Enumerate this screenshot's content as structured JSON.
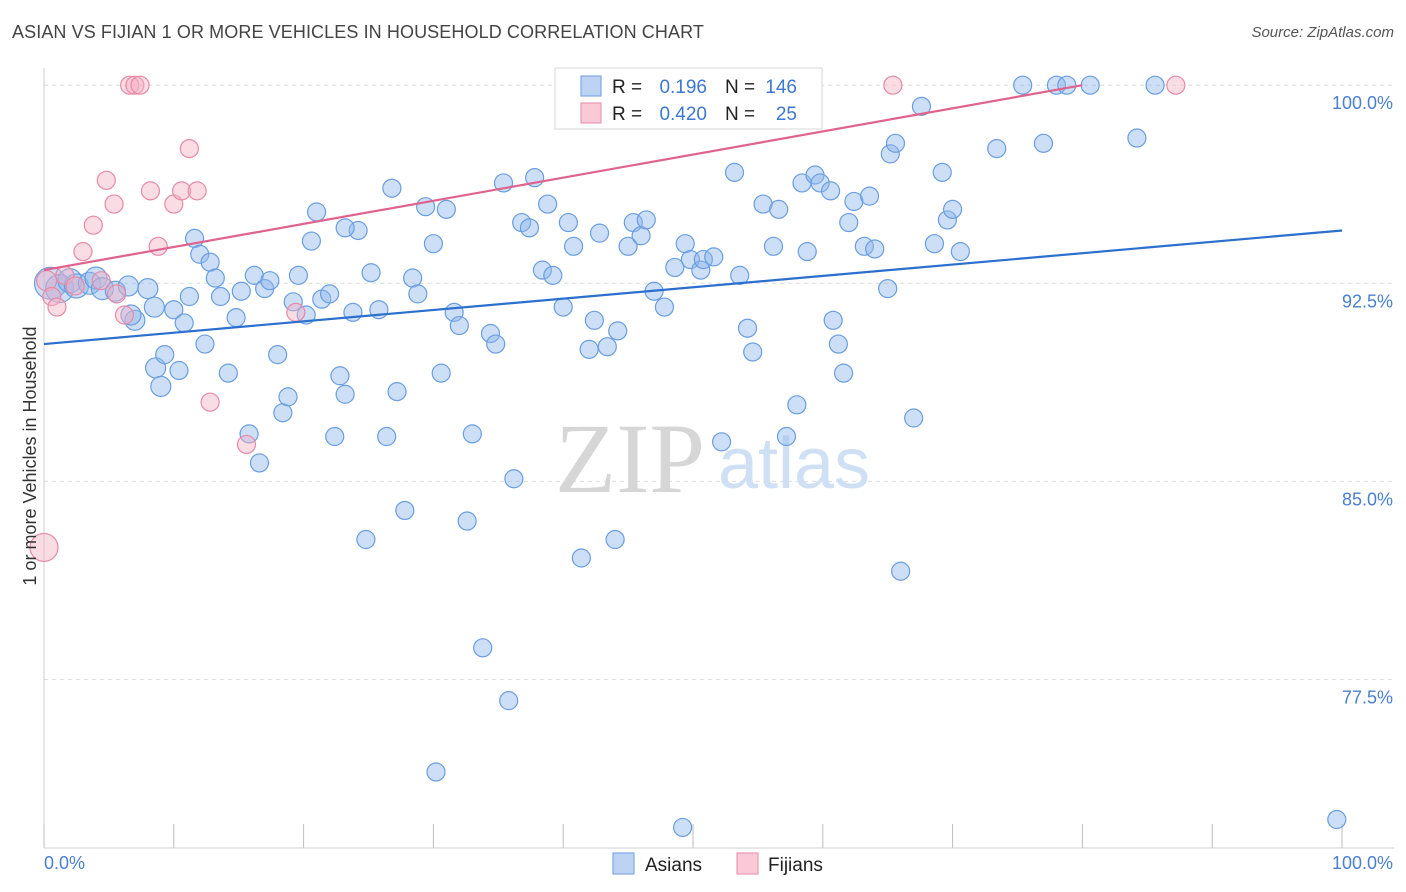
{
  "chart_data": {
    "type": "scatter",
    "title": "ASIAN VS FIJIAN 1 OR MORE VEHICLES IN HOUSEHOLD CORRELATION CHART",
    "source": "Source: ZipAtlas.com",
    "xlabel": "",
    "ylabel": "1 or more Vehicles in Household",
    "xlim": [
      0,
      100
    ],
    "ylim": [
      71.5,
      100.5
    ],
    "x_tick_labels": [
      "0.0%",
      "100.0%"
    ],
    "y_ticks": [
      {
        "value": 100.0,
        "label": "100.0%"
      },
      {
        "value": 92.5,
        "label": "92.5%"
      },
      {
        "value": 85.0,
        "label": "85.0%"
      },
      {
        "value": 77.5,
        "label": "77.5%"
      }
    ],
    "grid": "horizontal dashed",
    "legend_position": "top-center",
    "legend": [
      {
        "r_label": "R =",
        "r_value": "0.196",
        "n_label": "N =",
        "n_value": "146"
      },
      {
        "r_label": "R =",
        "r_value": "0.420",
        "n_label": "N =",
        "n_value": "25"
      }
    ],
    "watermark": {
      "zip": "ZIP",
      "atlas": "atlas"
    },
    "series": [
      {
        "name": "Asians",
        "color": "#8fb8ea",
        "stroke": "#6a9ee0",
        "trend_color": "#2b6fcf",
        "trend": [
          [
            0,
            90.2
          ],
          [
            100,
            94.5
          ]
        ],
        "points": [
          [
            0.5,
            92.5,
            16
          ],
          [
            1.2,
            92.3,
            14
          ],
          [
            2.0,
            92.6,
            12
          ],
          [
            2.5,
            92.4,
            12
          ],
          [
            3.5,
            92.5,
            11
          ],
          [
            4.0,
            92.7,
            11
          ],
          [
            4.5,
            92.3,
            11
          ],
          [
            5.5,
            92.2,
            10
          ],
          [
            6.5,
            92.4,
            10
          ],
          [
            7.0,
            91.1,
            10
          ],
          [
            8.0,
            92.3,
            10
          ],
          [
            6.7,
            91.3,
            10
          ],
          [
            8.6,
            89.3,
            10
          ],
          [
            9.0,
            88.6,
            10
          ],
          [
            8.5,
            91.6,
            10
          ],
          [
            9.3,
            89.8,
            9
          ],
          [
            10.0,
            91.5,
            9
          ],
          [
            10.4,
            89.2,
            9
          ],
          [
            10.8,
            91.0,
            9
          ],
          [
            11.2,
            92.0,
            9
          ],
          [
            11.6,
            94.2,
            9
          ],
          [
            12.0,
            93.6,
            9
          ],
          [
            12.4,
            90.2,
            9
          ],
          [
            12.8,
            93.3,
            9
          ],
          [
            13.2,
            92.7,
            9
          ],
          [
            13.6,
            92.0,
            9
          ],
          [
            14.2,
            89.1,
            9
          ],
          [
            14.8,
            91.2,
            9
          ],
          [
            15.2,
            92.2,
            9
          ],
          [
            15.8,
            86.8,
            9
          ],
          [
            16.2,
            92.8,
            9
          ],
          [
            16.6,
            85.7,
            9
          ],
          [
            17.0,
            92.3,
            9
          ],
          [
            17.4,
            92.6,
            9
          ],
          [
            18.0,
            89.8,
            9
          ],
          [
            18.4,
            87.6,
            9
          ],
          [
            18.8,
            88.2,
            9
          ],
          [
            19.2,
            91.8,
            9
          ],
          [
            19.6,
            92.8,
            9
          ],
          [
            20.2,
            91.3,
            9
          ],
          [
            20.6,
            94.1,
            9
          ],
          [
            21.0,
            95.2,
            9
          ],
          [
            21.4,
            91.9,
            9
          ],
          [
            22.0,
            92.1,
            9
          ],
          [
            22.4,
            86.7,
            9
          ],
          [
            22.8,
            89.0,
            9
          ],
          [
            23.2,
            88.3,
            9
          ],
          [
            23.8,
            91.4,
            9
          ],
          [
            24.2,
            94.5,
            9
          ],
          [
            24.8,
            82.8,
            9
          ],
          [
            25.2,
            92.9,
            9
          ],
          [
            25.8,
            91.5,
            9
          ],
          [
            26.4,
            86.7,
            9
          ],
          [
            26.8,
            96.1,
            9
          ],
          [
            27.2,
            88.4,
            9
          ],
          [
            27.8,
            83.9,
            9
          ],
          [
            28.4,
            92.7,
            9
          ],
          [
            28.8,
            92.1,
            9
          ],
          [
            29.4,
            95.4,
            9
          ],
          [
            30.0,
            94.0,
            9
          ],
          [
            30.6,
            89.1,
            9
          ],
          [
            31.0,
            95.3,
            9
          ],
          [
            31.6,
            91.4,
            9
          ],
          [
            32.0,
            90.9,
            9
          ],
          [
            32.6,
            83.5,
            9
          ],
          [
            33.0,
            86.8,
            9
          ],
          [
            33.8,
            78.7,
            9
          ],
          [
            34.4,
            90.6,
            9
          ],
          [
            34.8,
            90.2,
            9
          ],
          [
            35.4,
            96.3,
            9
          ],
          [
            35.8,
            76.7,
            9
          ],
          [
            36.2,
            85.1,
            9
          ],
          [
            36.8,
            94.8,
            9
          ],
          [
            37.4,
            94.6,
            9
          ],
          [
            37.8,
            96.5,
            9
          ],
          [
            38.4,
            93.0,
            9
          ],
          [
            38.8,
            95.5,
            9
          ],
          [
            39.2,
            92.8,
            9
          ],
          [
            40.0,
            91.6,
            9
          ],
          [
            40.4,
            94.8,
            9
          ],
          [
            40.8,
            93.9,
            9
          ],
          [
            41.4,
            82.1,
            9
          ],
          [
            42.0,
            90.0,
            9
          ],
          [
            42.4,
            91.1,
            9
          ],
          [
            42.8,
            94.4,
            9
          ],
          [
            43.4,
            90.1,
            9
          ],
          [
            44.0,
            82.8,
            9
          ],
          [
            44.2,
            90.7,
            9
          ],
          [
            45.0,
            93.9,
            9
          ],
          [
            45.4,
            94.8,
            9
          ],
          [
            46.0,
            94.3,
            9
          ],
          [
            46.4,
            94.9,
            9
          ],
          [
            47.0,
            92.2,
            9
          ],
          [
            47.8,
            91.6,
            9
          ],
          [
            48.6,
            93.1,
            9
          ],
          [
            49.4,
            94.0,
            9
          ],
          [
            49.8,
            93.4,
            9
          ],
          [
            50.6,
            93.0,
            9
          ],
          [
            50.8,
            93.4,
            9
          ],
          [
            51.6,
            93.5,
            9
          ],
          [
            52.2,
            86.5,
            9
          ],
          [
            53.2,
            96.7,
            9
          ],
          [
            53.6,
            92.8,
            9
          ],
          [
            54.2,
            90.8,
            9
          ],
          [
            54.6,
            89.9,
            9
          ],
          [
            55.4,
            95.5,
            9
          ],
          [
            56.2,
            93.9,
            9
          ],
          [
            56.6,
            95.3,
            9
          ],
          [
            57.2,
            86.7,
            9
          ],
          [
            58.0,
            87.9,
            9
          ],
          [
            58.4,
            96.3,
            9
          ],
          [
            58.8,
            93.7,
            9
          ],
          [
            59.4,
            96.6,
            9
          ],
          [
            59.8,
            96.3,
            9
          ],
          [
            60.6,
            96.0,
            9
          ],
          [
            60.8,
            91.1,
            9
          ],
          [
            61.2,
            90.2,
            9
          ],
          [
            61.6,
            89.1,
            9
          ],
          [
            62.0,
            94.8,
            9
          ],
          [
            62.4,
            95.6,
            9
          ],
          [
            63.2,
            93.9,
            9
          ],
          [
            63.6,
            95.8,
            9
          ],
          [
            64.0,
            93.8,
            9
          ],
          [
            65.0,
            92.3,
            9
          ],
          [
            65.2,
            97.4,
            9
          ],
          [
            65.6,
            97.8,
            9
          ],
          [
            66.0,
            81.6,
            9
          ],
          [
            67.0,
            87.4,
            9
          ],
          [
            67.6,
            99.2,
            9
          ],
          [
            68.6,
            94.0,
            9
          ],
          [
            69.2,
            96.7,
            9
          ],
          [
            69.6,
            94.9,
            9
          ],
          [
            70.0,
            95.3,
            9
          ],
          [
            70.6,
            93.7,
            9
          ],
          [
            73.4,
            97.6,
            9
          ],
          [
            75.4,
            100.0,
            9
          ],
          [
            77.0,
            97.8,
            9
          ],
          [
            78.0,
            100.0,
            9
          ],
          [
            78.8,
            100.0,
            9
          ],
          [
            80.6,
            100.0,
            9
          ],
          [
            84.2,
            98.0,
            9
          ],
          [
            85.6,
            100.0,
            9
          ],
          [
            99.6,
            72.2,
            9
          ],
          [
            23.2,
            94.6,
            9
          ],
          [
            49.2,
            71.9,
            9
          ],
          [
            30.2,
            74.0,
            9
          ]
        ]
      },
      {
        "name": "Fijians",
        "color": "#f4b1c5",
        "stroke": "#e68aa8",
        "trend_color": "#e0628e",
        "trend": [
          [
            0,
            93.0
          ],
          [
            80,
            100.0
          ]
        ],
        "points": [
          [
            0.0,
            82.5,
            14
          ],
          [
            0.2,
            92.6,
            10
          ],
          [
            0.6,
            92.0,
            9
          ],
          [
            1.0,
            91.6,
            9
          ],
          [
            1.6,
            92.8,
            9
          ],
          [
            2.4,
            92.4,
            9
          ],
          [
            3.0,
            93.7,
            9
          ],
          [
            3.8,
            94.7,
            9
          ],
          [
            4.4,
            92.6,
            9
          ],
          [
            4.8,
            96.4,
            9
          ],
          [
            5.4,
            95.5,
            9
          ],
          [
            5.6,
            92.1,
            9
          ],
          [
            6.2,
            91.3,
            9
          ],
          [
            6.6,
            100.0,
            9
          ],
          [
            7.0,
            100.0,
            9
          ],
          [
            7.4,
            100.0,
            9
          ],
          [
            8.2,
            96.0,
            9
          ],
          [
            8.8,
            93.9,
            9
          ],
          [
            10.0,
            95.5,
            9
          ],
          [
            10.6,
            96.0,
            9
          ],
          [
            11.2,
            97.6,
            9
          ],
          [
            11.8,
            96.0,
            9
          ],
          [
            12.8,
            88.0,
            9
          ],
          [
            15.6,
            86.4,
            9
          ],
          [
            19.4,
            91.4,
            9
          ],
          [
            65.4,
            100.0,
            9
          ],
          [
            87.2,
            100.0,
            9
          ]
        ]
      }
    ]
  }
}
